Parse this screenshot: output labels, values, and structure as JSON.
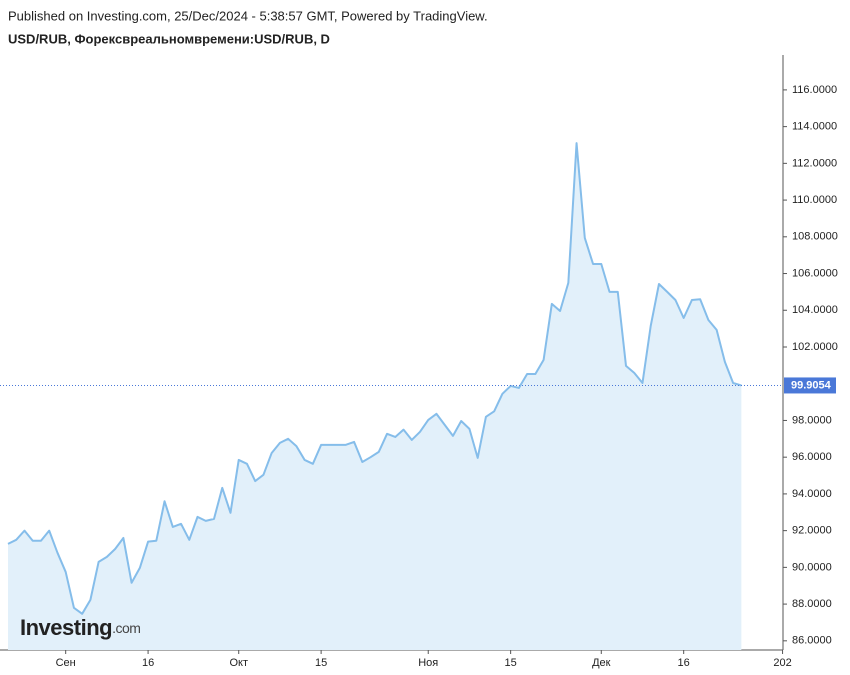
{
  "chart_data": {
    "type": "area",
    "header": "Published on Investing.com, 25/Dec/2024 - 5:38:57 GMT, Powered by TradingView.",
    "title": "USD/RUB, Форексвреальномвремени:USD/RUB, D",
    "logo_text": "Investing",
    "logo_suffix": ".com",
    "categories": [
      null,
      null,
      null,
      null,
      null,
      null,
      null,
      "Сен",
      null,
      null,
      null,
      null,
      null,
      null,
      null,
      null,
      null,
      "16",
      null,
      null,
      null,
      null,
      null,
      null,
      null,
      null,
      null,
      null,
      "Окт",
      null,
      null,
      null,
      null,
      null,
      null,
      null,
      null,
      null,
      "15",
      null,
      null,
      null,
      null,
      null,
      null,
      null,
      null,
      null,
      null,
      null,
      null,
      "Ноя",
      null,
      null,
      null,
      null,
      null,
      null,
      null,
      null,
      null,
      "15",
      null,
      null,
      null,
      null,
      null,
      null,
      null,
      null,
      null,
      null,
      "Дек",
      null,
      null,
      null,
      null,
      null,
      null,
      null,
      null,
      null,
      "16",
      null,
      null,
      null,
      null,
      null,
      null,
      null,
      null,
      null,
      null,
      null,
      "202"
    ],
    "values": [
      91.28,
      91.5,
      92.0,
      91.45,
      91.45,
      92.0,
      90.8,
      89.75,
      87.8,
      87.47,
      88.23,
      90.3,
      90.57,
      91.0,
      91.6,
      89.16,
      89.97,
      91.4,
      91.45,
      93.6,
      92.2,
      92.37,
      91.5,
      92.75,
      92.53,
      92.64,
      94.33,
      92.97,
      95.85,
      95.64,
      94.7,
      95.04,
      96.23,
      96.78,
      97.0,
      96.6,
      95.85,
      95.64,
      96.67,
      96.67,
      96.67,
      96.67,
      96.83,
      95.74,
      96.0,
      96.29,
      97.27,
      97.1,
      97.5,
      96.94,
      97.38,
      98.03,
      98.36,
      97.76,
      97.16,
      97.97,
      97.54,
      95.96,
      98.2,
      98.5,
      99.45,
      99.88,
      99.77,
      100.53,
      100.53,
      101.3,
      104.35,
      103.96,
      105.49,
      113.1,
      107.94,
      106.52,
      106.52,
      105.0,
      105.0,
      100.97,
      100.59,
      100.04,
      103.15,
      105.43,
      105.0,
      104.56,
      103.58,
      104.56,
      104.6,
      103.47,
      102.93,
      101.19,
      100.04,
      99.9054,
      null,
      null,
      null,
      null,
      null
    ],
    "color": "#85bdea",
    "fill_color": "#e2f0fa",
    "last_value_color": "#4a78d8",
    "ylim": [
      85.5,
      117.9
    ],
    "yticks": [
      {
        "value": 86,
        "label": "86.0000"
      },
      {
        "value": 88,
        "label": "88.0000"
      },
      {
        "value": 90,
        "label": "90.0000"
      },
      {
        "value": 92,
        "label": "92.0000"
      },
      {
        "value": 94,
        "label": "94.0000"
      },
      {
        "value": 96,
        "label": "96.0000"
      },
      {
        "value": 98,
        "label": "98.0000"
      },
      {
        "value": 102,
        "label": "102.0000"
      },
      {
        "value": 104,
        "label": "104.0000"
      },
      {
        "value": 106,
        "label": "106.0000"
      },
      {
        "value": 108,
        "label": "108.0000"
      },
      {
        "value": 110,
        "label": "110.0000"
      },
      {
        "value": 112,
        "label": "112.0000"
      },
      {
        "value": 114,
        "label": "114.0000"
      },
      {
        "value": 116,
        "label": "116.0000"
      }
    ]
  }
}
